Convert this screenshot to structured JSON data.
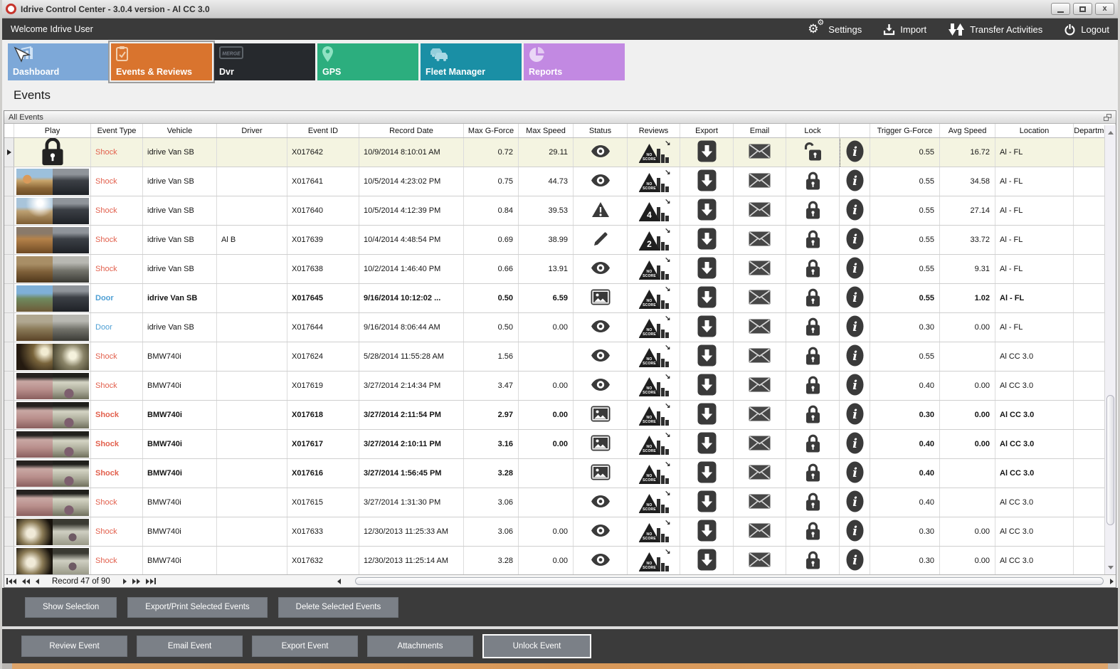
{
  "window": {
    "title": "Idrive Control Center - 3.0.4 version - Al CC 3.0",
    "controls": {
      "minimize": "minimize",
      "maximize": "maximize",
      "close": "close"
    }
  },
  "topbar": {
    "welcome": "Welcome Idrive User",
    "actions": [
      {
        "id": "settings",
        "label": "Settings",
        "icon": "gears-icon"
      },
      {
        "id": "import",
        "label": "Import",
        "icon": "import-icon"
      },
      {
        "id": "transfer-activities",
        "label": "Transfer Activities",
        "icon": "transfer-arrows-icon"
      },
      {
        "id": "logout",
        "label": "Logout",
        "icon": "power-icon"
      }
    ]
  },
  "tiles": [
    {
      "id": "dashboard",
      "label": "Dashboard",
      "color": "#7da8d8",
      "icon": "dashboard-chart-icon",
      "selected": false
    },
    {
      "id": "events-reviews",
      "label": "Events & Reviews",
      "color": "#d9742e",
      "icon": "clipboard-check-icon",
      "selected": true
    },
    {
      "id": "dvr",
      "label": "Dvr",
      "color": "#26292d",
      "icon": "dvr-badge-icon",
      "selected": false
    },
    {
      "id": "gps",
      "label": "GPS",
      "color": "#2cae7e",
      "icon": "map-pin-icon",
      "selected": false
    },
    {
      "id": "fleet-manager",
      "label": "Fleet Manager",
      "color": "#1a8fa5",
      "icon": "fleet-trucks-icon",
      "selected": false
    },
    {
      "id": "reports",
      "label": "Reports",
      "color": "#c289e2",
      "icon": "pie-chart-icon",
      "selected": false
    }
  ],
  "page": {
    "heading": "Events",
    "panel_title": "All Events"
  },
  "table": {
    "columns": [
      "",
      "Play",
      "Event Type",
      "Vehicle",
      "Driver",
      "Event ID",
      "Record Date",
      "Max G-Force",
      "Max Speed",
      "Status",
      "Reviews",
      "Export",
      "Email",
      "Lock",
      "",
      "Trigger G-Force",
      "Avg Speed",
      "Location",
      "Department"
    ],
    "rows": [
      {
        "selected": true,
        "bold": false,
        "thumb": "lock",
        "event_type": "Shock",
        "event_class": "shock",
        "vehicle": "idrive Van SB",
        "driver": "",
        "event_id": "X017642",
        "record_date": "10/9/2014 8:10:01 AM",
        "max_g": "0.72",
        "max_speed": "29.11",
        "status_icon": "eye-icon",
        "review_label": "NO SCORE",
        "lock_icon": "lock-open-icon",
        "trigger_g": "0.55",
        "avg_speed": "16.72",
        "location": "Al - FL"
      },
      {
        "selected": false,
        "bold": false,
        "thumb": "van-a",
        "event_type": "Shock",
        "event_class": "shock",
        "vehicle": "idrive Van SB",
        "driver": "",
        "event_id": "X017641",
        "record_date": "10/5/2014 4:23:02 PM",
        "max_g": "0.75",
        "max_speed": "44.73",
        "status_icon": "eye-icon",
        "review_label": "NO SCORE",
        "lock_icon": "lock-closed-icon",
        "trigger_g": "0.55",
        "avg_speed": "34.58",
        "location": "Al - FL"
      },
      {
        "selected": false,
        "bold": false,
        "thumb": "van-b",
        "event_type": "Shock",
        "event_class": "shock",
        "vehicle": "idrive Van SB",
        "driver": "",
        "event_id": "X017640",
        "record_date": "10/5/2014 4:12:39 PM",
        "max_g": "0.84",
        "max_speed": "39.53",
        "status_icon": "warning-icon",
        "review_label": "4",
        "lock_icon": "lock-closed-icon",
        "trigger_g": "0.55",
        "avg_speed": "27.14",
        "location": "Al - FL"
      },
      {
        "selected": false,
        "bold": false,
        "thumb": "van-c",
        "event_type": "Shock",
        "event_class": "shock",
        "vehicle": "idrive Van SB",
        "driver": "Al B",
        "event_id": "X017639",
        "record_date": "10/4/2014 4:48:54 PM",
        "max_g": "0.69",
        "max_speed": "38.99",
        "status_icon": "edit-icon",
        "review_label": "2",
        "lock_icon": "lock-closed-icon",
        "trigger_g": "0.55",
        "avg_speed": "33.72",
        "location": "Al - FL"
      },
      {
        "selected": false,
        "bold": false,
        "thumb": "van-d",
        "event_type": "Shock",
        "event_class": "shock",
        "vehicle": "idrive Van SB",
        "driver": "",
        "event_id": "X017638",
        "record_date": "10/2/2014 1:46:40 PM",
        "max_g": "0.66",
        "max_speed": "13.91",
        "status_icon": "eye-icon",
        "review_label": "NO SCORE",
        "lock_icon": "lock-closed-icon",
        "trigger_g": "0.55",
        "avg_speed": "9.31",
        "location": "Al - FL"
      },
      {
        "selected": false,
        "bold": true,
        "thumb": "van-e",
        "event_type": "Door",
        "event_class": "door",
        "vehicle": "idrive Van SB",
        "driver": "",
        "event_id": "X017645",
        "record_date": "9/16/2014 10:12:02 ...",
        "max_g": "0.50",
        "max_speed": "6.59",
        "status_icon": "image-icon",
        "review_label": "NO SCORE",
        "lock_icon": "lock-closed-icon",
        "trigger_g": "0.55",
        "avg_speed": "1.02",
        "location": "Al - FL"
      },
      {
        "selected": false,
        "bold": false,
        "thumb": "van-f",
        "event_type": "Door",
        "event_class": "door",
        "vehicle": "idrive Van SB",
        "driver": "",
        "event_id": "X017644",
        "record_date": "9/16/2014 8:06:44 AM",
        "max_g": "0.50",
        "max_speed": "0.00",
        "status_icon": "eye-icon",
        "review_label": "NO SCORE",
        "lock_icon": "lock-closed-icon",
        "trigger_g": "0.30",
        "avg_speed": "0.00",
        "location": "Al - FL"
      },
      {
        "selected": false,
        "bold": false,
        "thumb": "bmw-a",
        "event_type": "Shock",
        "event_class": "shock",
        "vehicle": "BMW740i",
        "driver": "",
        "event_id": "X017624",
        "record_date": "5/28/2014 11:55:28 AM",
        "max_g": "1.56",
        "max_speed": "",
        "status_icon": "eye-icon",
        "review_label": "NO SCORE",
        "lock_icon": "lock-closed-icon",
        "trigger_g": "0.55",
        "avg_speed": "",
        "location": "Al CC 3.0"
      },
      {
        "selected": false,
        "bold": false,
        "thumb": "bmw-b",
        "event_type": "Shock",
        "event_class": "shock",
        "vehicle": "BMW740i",
        "driver": "",
        "event_id": "X017619",
        "record_date": "3/27/2014 2:14:34 PM",
        "max_g": "3.47",
        "max_speed": "0.00",
        "status_icon": "eye-icon",
        "review_label": "NO SCORE",
        "lock_icon": "lock-closed-icon",
        "trigger_g": "0.40",
        "avg_speed": "0.00",
        "location": "Al CC 3.0"
      },
      {
        "selected": false,
        "bold": true,
        "thumb": "bmw-b",
        "event_type": "Shock",
        "event_class": "shock",
        "vehicle": "BMW740i",
        "driver": "",
        "event_id": "X017618",
        "record_date": "3/27/2014 2:11:54 PM",
        "max_g": "2.97",
        "max_speed": "0.00",
        "status_icon": "image-icon",
        "review_label": "NO SCORE",
        "lock_icon": "lock-closed-icon",
        "trigger_g": "0.30",
        "avg_speed": "0.00",
        "location": "Al CC 3.0"
      },
      {
        "selected": false,
        "bold": true,
        "thumb": "bmw-b",
        "event_type": "Shock",
        "event_class": "shock",
        "vehicle": "BMW740i",
        "driver": "",
        "event_id": "X017617",
        "record_date": "3/27/2014 2:10:11 PM",
        "max_g": "3.16",
        "max_speed": "0.00",
        "status_icon": "image-icon",
        "review_label": "NO SCORE",
        "lock_icon": "lock-closed-icon",
        "trigger_g": "0.40",
        "avg_speed": "0.00",
        "location": "Al CC 3.0"
      },
      {
        "selected": false,
        "bold": true,
        "thumb": "bmw-b",
        "event_type": "Shock",
        "event_class": "shock",
        "vehicle": "BMW740i",
        "driver": "",
        "event_id": "X017616",
        "record_date": "3/27/2014 1:56:45 PM",
        "max_g": "3.28",
        "max_speed": "",
        "status_icon": "image-icon",
        "review_label": "NO SCORE",
        "lock_icon": "lock-closed-icon",
        "trigger_g": "0.40",
        "avg_speed": "",
        "location": "Al CC 3.0"
      },
      {
        "selected": false,
        "bold": false,
        "thumb": "bmw-b",
        "event_type": "Shock",
        "event_class": "shock",
        "vehicle": "BMW740i",
        "driver": "",
        "event_id": "X017615",
        "record_date": "3/27/2014 1:31:30 PM",
        "max_g": "3.06",
        "max_speed": "",
        "status_icon": "eye-icon",
        "review_label": "NO SCORE",
        "lock_icon": "lock-closed-icon",
        "trigger_g": "0.40",
        "avg_speed": "",
        "location": "Al CC 3.0"
      },
      {
        "selected": false,
        "bold": false,
        "thumb": "bmw-c",
        "event_type": "Shock",
        "event_class": "shock",
        "vehicle": "BMW740i",
        "driver": "",
        "event_id": "X017633",
        "record_date": "12/30/2013 11:25:33 AM",
        "max_g": "3.06",
        "max_speed": "0.00",
        "status_icon": "eye-icon",
        "review_label": "NO SCORE",
        "lock_icon": "lock-closed-icon",
        "trigger_g": "0.30",
        "avg_speed": "0.00",
        "location": "Al CC 3.0"
      },
      {
        "selected": false,
        "bold": false,
        "thumb": "bmw-c",
        "event_type": "Shock",
        "event_class": "shock",
        "vehicle": "BMW740i",
        "driver": "",
        "event_id": "X017632",
        "record_date": "12/30/2013 11:25:14 AM",
        "max_g": "3.28",
        "max_speed": "0.00",
        "status_icon": "eye-icon",
        "review_label": "NO SCORE",
        "lock_icon": "lock-closed-icon",
        "trigger_g": "0.30",
        "avg_speed": "0.00",
        "location": "Al CC 3.0"
      }
    ]
  },
  "pagination": {
    "record_text": "Record 47 of 90"
  },
  "selection_buttons": [
    "Show Selection",
    "Export/Print Selected Events",
    "Delete Selected Events"
  ],
  "event_buttons": [
    "Review Event",
    "Email Event",
    "Export Event",
    "Attachments",
    "Unlock Event"
  ],
  "focused_event_button": "Unlock Event",
  "colors": {
    "accent_orange": "#d9742e",
    "shock_text": "#e2604d",
    "door_text": "#4e9fd4",
    "selected_row_bg": "#f4f4e1",
    "dark_bar": "#3b3b3b"
  }
}
